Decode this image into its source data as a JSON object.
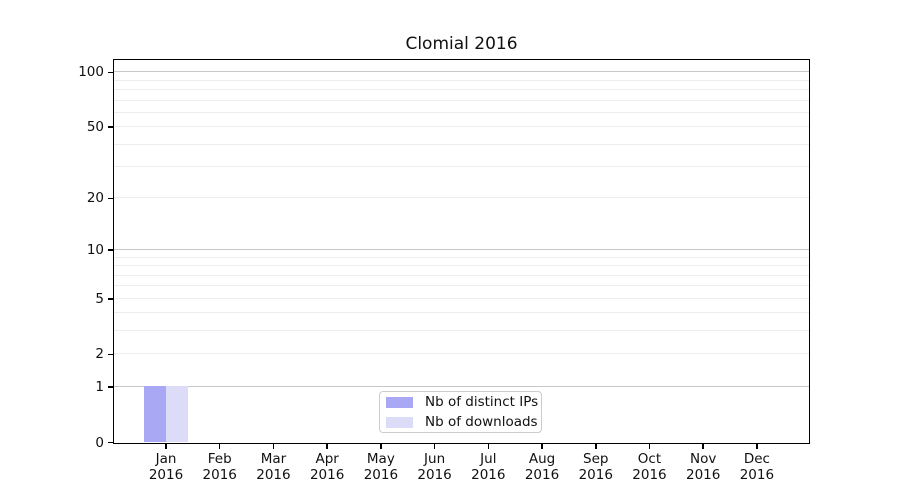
{
  "chart_data": {
    "type": "bar",
    "title": "Clomial 2016",
    "xlabel": "",
    "ylabel": "",
    "categories": [
      "Jan 2016",
      "Feb 2016",
      "Mar 2016",
      "Apr 2016",
      "May 2016",
      "Jun 2016",
      "Jul 2016",
      "Aug 2016",
      "Sep 2016",
      "Oct 2016",
      "Nov 2016",
      "Dec 2016"
    ],
    "series": [
      {
        "name": "Nb of distinct IPs",
        "color": "#a8a8f4",
        "values": [
          1,
          0,
          0,
          0,
          0,
          0,
          0,
          0,
          0,
          0,
          0,
          0
        ]
      },
      {
        "name": "Nb of downloads",
        "color": "#dcdcf9",
        "values": [
          1,
          0,
          0,
          0,
          0,
          0,
          0,
          0,
          0,
          0,
          0,
          0
        ]
      }
    ],
    "y_axis": {
      "scale": "log1p",
      "ticks": [
        0,
        1,
        2,
        5,
        10,
        20,
        50,
        100
      ],
      "max": 116,
      "major_gridlines": [
        1,
        10,
        100
      ],
      "minor_gridlines": [
        2,
        3,
        4,
        5,
        6,
        7,
        8,
        9,
        20,
        30,
        40,
        50,
        60,
        70,
        80,
        90
      ]
    },
    "ylim": [
      0,
      116
    ],
    "grid": true,
    "legend": {
      "position": "lower center"
    },
    "colors": {
      "spine": "#000000",
      "major_grid": "#c8c8c8",
      "minor_grid": "#ededed",
      "legend_border": "#cccccc",
      "text": "#111111",
      "background": "#ffffff"
    }
  }
}
